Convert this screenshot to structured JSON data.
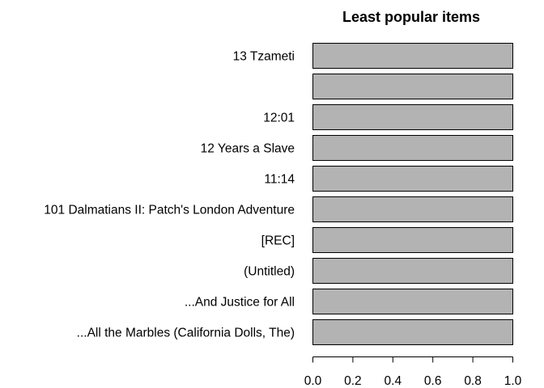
{
  "chart_data": {
    "type": "bar",
    "orientation": "horizontal",
    "title": "Least popular items",
    "xlabel": "",
    "ylabel": "",
    "categories": [
      "13 Tzameti",
      "",
      "12:01",
      "12 Years a Slave",
      "11:14",
      "101 Dalmatians II: Patch's London Adventure",
      "[REC]",
      "(Untitled)",
      "...And Justice for All",
      "...All the Marbles (California Dolls, The)"
    ],
    "values": [
      1,
      1,
      1,
      1,
      1,
      1,
      1,
      1,
      1,
      1
    ],
    "xlim": [
      0,
      1
    ],
    "xticks": [
      "0.0",
      "0.2",
      "0.4",
      "0.6",
      "0.8",
      "1.0"
    ],
    "bar_color": "#b3b3b3",
    "grid": false,
    "legend": false
  }
}
